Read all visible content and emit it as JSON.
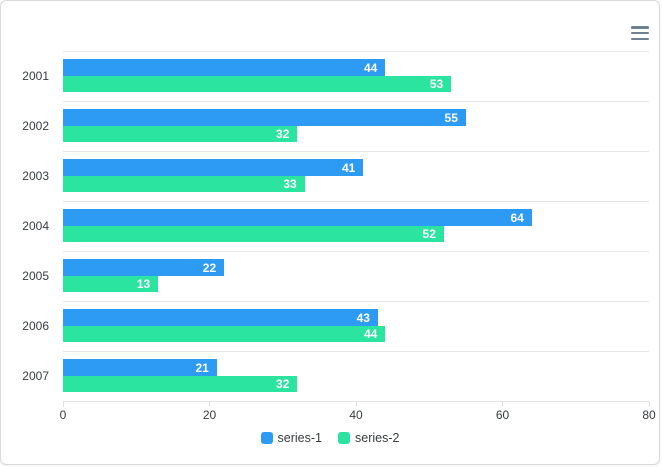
{
  "chart_data": {
    "type": "bar",
    "orientation": "horizontal",
    "title": "",
    "xlabel": "",
    "ylabel": "",
    "categories": [
      "2001",
      "2002",
      "2003",
      "2004",
      "2005",
      "2006",
      "2007"
    ],
    "series": [
      {
        "name": "series-1",
        "color": "#2D9BF4",
        "values": [
          44,
          55,
          41,
          64,
          22,
          43,
          21
        ]
      },
      {
        "name": "series-2",
        "color": "#2BE4A0",
        "values": [
          53,
          32,
          33,
          52,
          13,
          44,
          32
        ]
      }
    ],
    "xlim": [
      0,
      80
    ],
    "x_ticks": [
      0,
      20,
      40,
      60,
      80
    ],
    "grid": "horizontal-category-separators-only",
    "legend_position": "bottom",
    "data_labels": "value-inside-bar-end"
  },
  "toolbar": {
    "menu_icon": "hamburger-menu-icon"
  },
  "colors": {
    "grid": "#E7E7E7",
    "axis_label": "#373D3F",
    "data_label": "#FFFFFF",
    "toolbar_icon": "#6E8192",
    "card_border": "#D9D9D9",
    "background": "#FFFFFF"
  }
}
